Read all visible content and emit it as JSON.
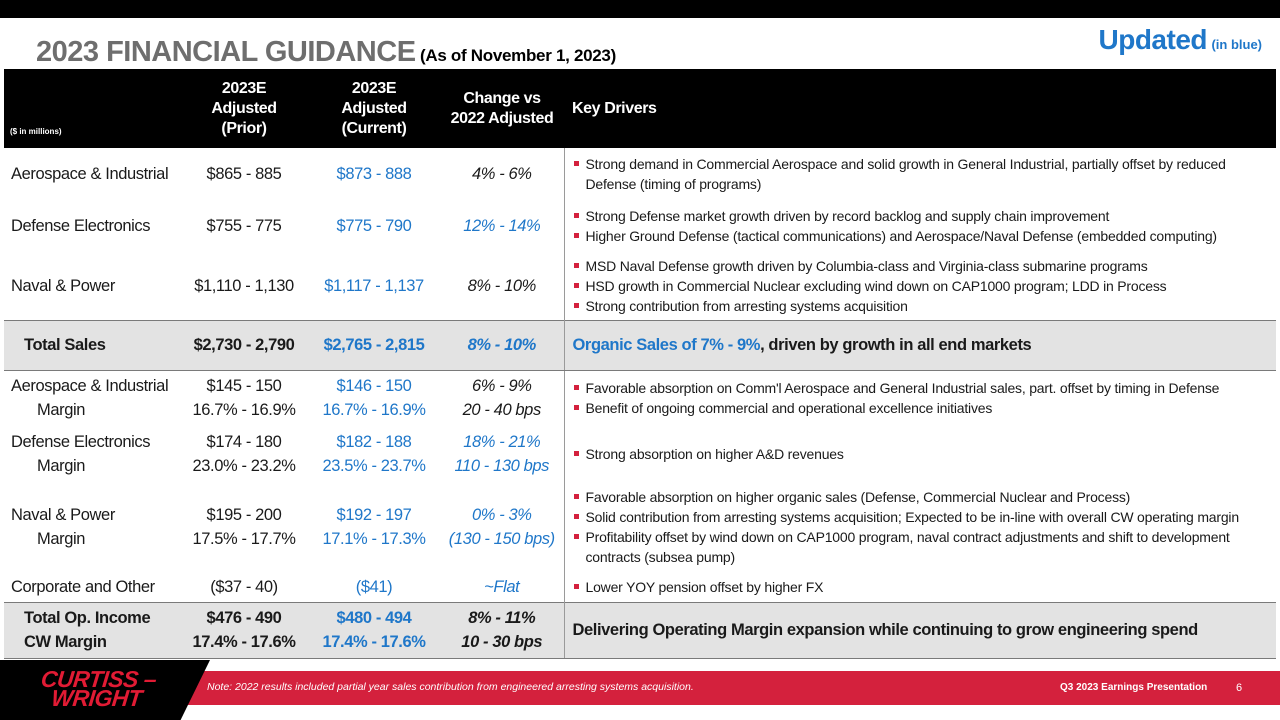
{
  "title": {
    "main": "2023 FINANCIAL GUIDANCE",
    "sub": "(As of November 1, 2023)"
  },
  "updated": {
    "label": "Updated",
    "note": "(in blue)"
  },
  "colors": {
    "blue": "#1f77c9",
    "brand_red": "#d4213d",
    "header_black": "#000000",
    "total_gray": "#e3e3e3"
  },
  "table": {
    "units_note": "($ in millions)",
    "headers": {
      "prior": [
        "2023E",
        "Adjusted",
        "(Prior)"
      ],
      "current": [
        "2023E",
        "Adjusted",
        "(Current)"
      ],
      "change": [
        "Change vs",
        "2022 Adjusted"
      ],
      "drivers": "Key Drivers"
    },
    "sales_rows": [
      {
        "segment": "Aerospace & Industrial",
        "prior": "$865 - 885",
        "current": "$873 - 888",
        "change": "4% - 6%",
        "drivers": [
          "Strong demand in Commercial Aerospace and solid growth in General Industrial, partially offset by reduced Defense (timing of programs)"
        ]
      },
      {
        "segment": "Defense Electronics",
        "prior": "$755 - 775",
        "current": "$775 - 790",
        "change": "12% - 14%",
        "drivers": [
          "Strong Defense market growth driven by record backlog and supply chain improvement",
          "Higher Ground Defense (tactical communications) and Aerospace/Naval Defense (embedded computing)"
        ]
      },
      {
        "segment": "Naval & Power",
        "prior": "$1,110 - 1,130",
        "current": "$1,117 - 1,137",
        "change": "8% - 10%",
        "drivers": [
          "MSD Naval Defense growth driven by Columbia-class and Virginia-class submarine programs",
          "HSD growth in Commercial Nuclear excluding wind down on CAP1000 program; LDD in Process",
          "Strong contribution from arresting systems acquisition"
        ]
      }
    ],
    "total_sales": {
      "label": "Total Sales",
      "prior": "$2,730 - 2,790",
      "current": "$2,765 - 2,815",
      "change": "8% - 10%",
      "driver_blue": "Organic Sales of 7% - 9%",
      "driver_rest": ", driven by growth in all end markets"
    },
    "margin_rows": [
      {
        "segment": "Aerospace & Industrial",
        "margin_label": "Margin",
        "prior": "$145 - 150",
        "prior_margin": "16.7% - 16.9%",
        "current": "$146 - 150",
        "current_margin": "16.7% - 16.9%",
        "change": "6% - 9%",
        "change_margin": "20 - 40 bps",
        "drivers": [
          "Favorable absorption on Comm'l Aerospace and General Industrial sales, part. offset by timing in Defense",
          "Benefit of ongoing commercial and operational excellence initiatives"
        ]
      },
      {
        "segment": "Defense Electronics",
        "margin_label": "Margin",
        "prior": "$174 - 180",
        "prior_margin": "23.0% - 23.2%",
        "current": "$182 - 188",
        "current_margin": "23.5% - 23.7%",
        "change": "18% - 21%",
        "change_margin": "110 - 130 bps",
        "drivers": [
          "Strong absorption on higher A&D revenues"
        ]
      },
      {
        "segment": "Naval & Power",
        "margin_label": "Margin",
        "prior": "$195 - 200",
        "prior_margin": "17.5% - 17.7%",
        "current": "$192 - 197",
        "current_margin": "17.1% - 17.3%",
        "change": "0% - 3%",
        "change_margin": "(130 - 150 bps)",
        "drivers": [
          "Favorable absorption on higher organic sales (Defense, Commercial Nuclear and Process)",
          "Solid contribution from arresting systems acquisition; Expected to be in-line with overall CW operating margin",
          "Profitability offset by wind down on CAP1000 program, naval contract adjustments and shift to development contracts (subsea pump)"
        ]
      }
    ],
    "corporate": {
      "segment": "Corporate and Other",
      "prior": "($37 - 40)",
      "current": "($41)",
      "change": "~Flat",
      "drivers": [
        "Lower YOY pension offset by higher FX"
      ]
    },
    "total_op": {
      "label": "Total Op. Income",
      "margin_label": "CW Margin",
      "prior": "$476 - 490",
      "prior_margin": "17.4% - 17.6%",
      "current": "$480 - 494",
      "current_margin": "17.4% - 17.6%",
      "change": "8% - 11%",
      "change_margin": "10 - 30 bps",
      "driver": "Delivering Operating Margin expansion while continuing to grow engineering spend"
    }
  },
  "footer": {
    "logo_line1": "CURTISS –",
    "logo_line2": "WRIGHT",
    "note": "Note: 2022 results included partial year sales contribution from engineered  arresting systems acquisition.",
    "presentation": "Q3 2023 Earnings Presentation",
    "page": "6"
  }
}
